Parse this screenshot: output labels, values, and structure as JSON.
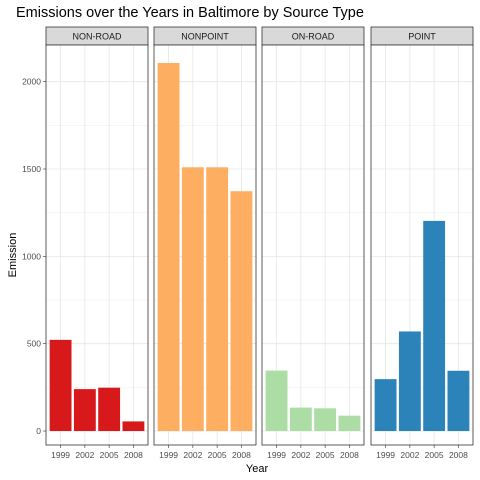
{
  "chart_data": {
    "type": "bar",
    "title": "Emissions over the Years in Baltimore by Source Type",
    "xlabel": "Year",
    "ylabel": "Emission",
    "ylim": [
      -80,
      2210
    ],
    "yticks": [
      0,
      500,
      1000,
      1500,
      2000
    ],
    "categories": [
      "1999",
      "2002",
      "2005",
      "2008"
    ],
    "grid": true,
    "legend": "none",
    "facets": [
      {
        "name": "NON-ROAD",
        "color": "#d7191c",
        "values": [
          522,
          240,
          248,
          55
        ]
      },
      {
        "name": "NONPOINT",
        "color": "#fdae61",
        "values": [
          2107,
          1510,
          1510,
          1373
        ]
      },
      {
        "name": "ON-ROAD",
        "color": "#abdda4",
        "values": [
          346,
          134,
          130,
          88
        ]
      },
      {
        "name": "POINT",
        "color": "#2b83ba",
        "values": [
          297,
          570,
          1203,
          345
        ]
      }
    ]
  }
}
